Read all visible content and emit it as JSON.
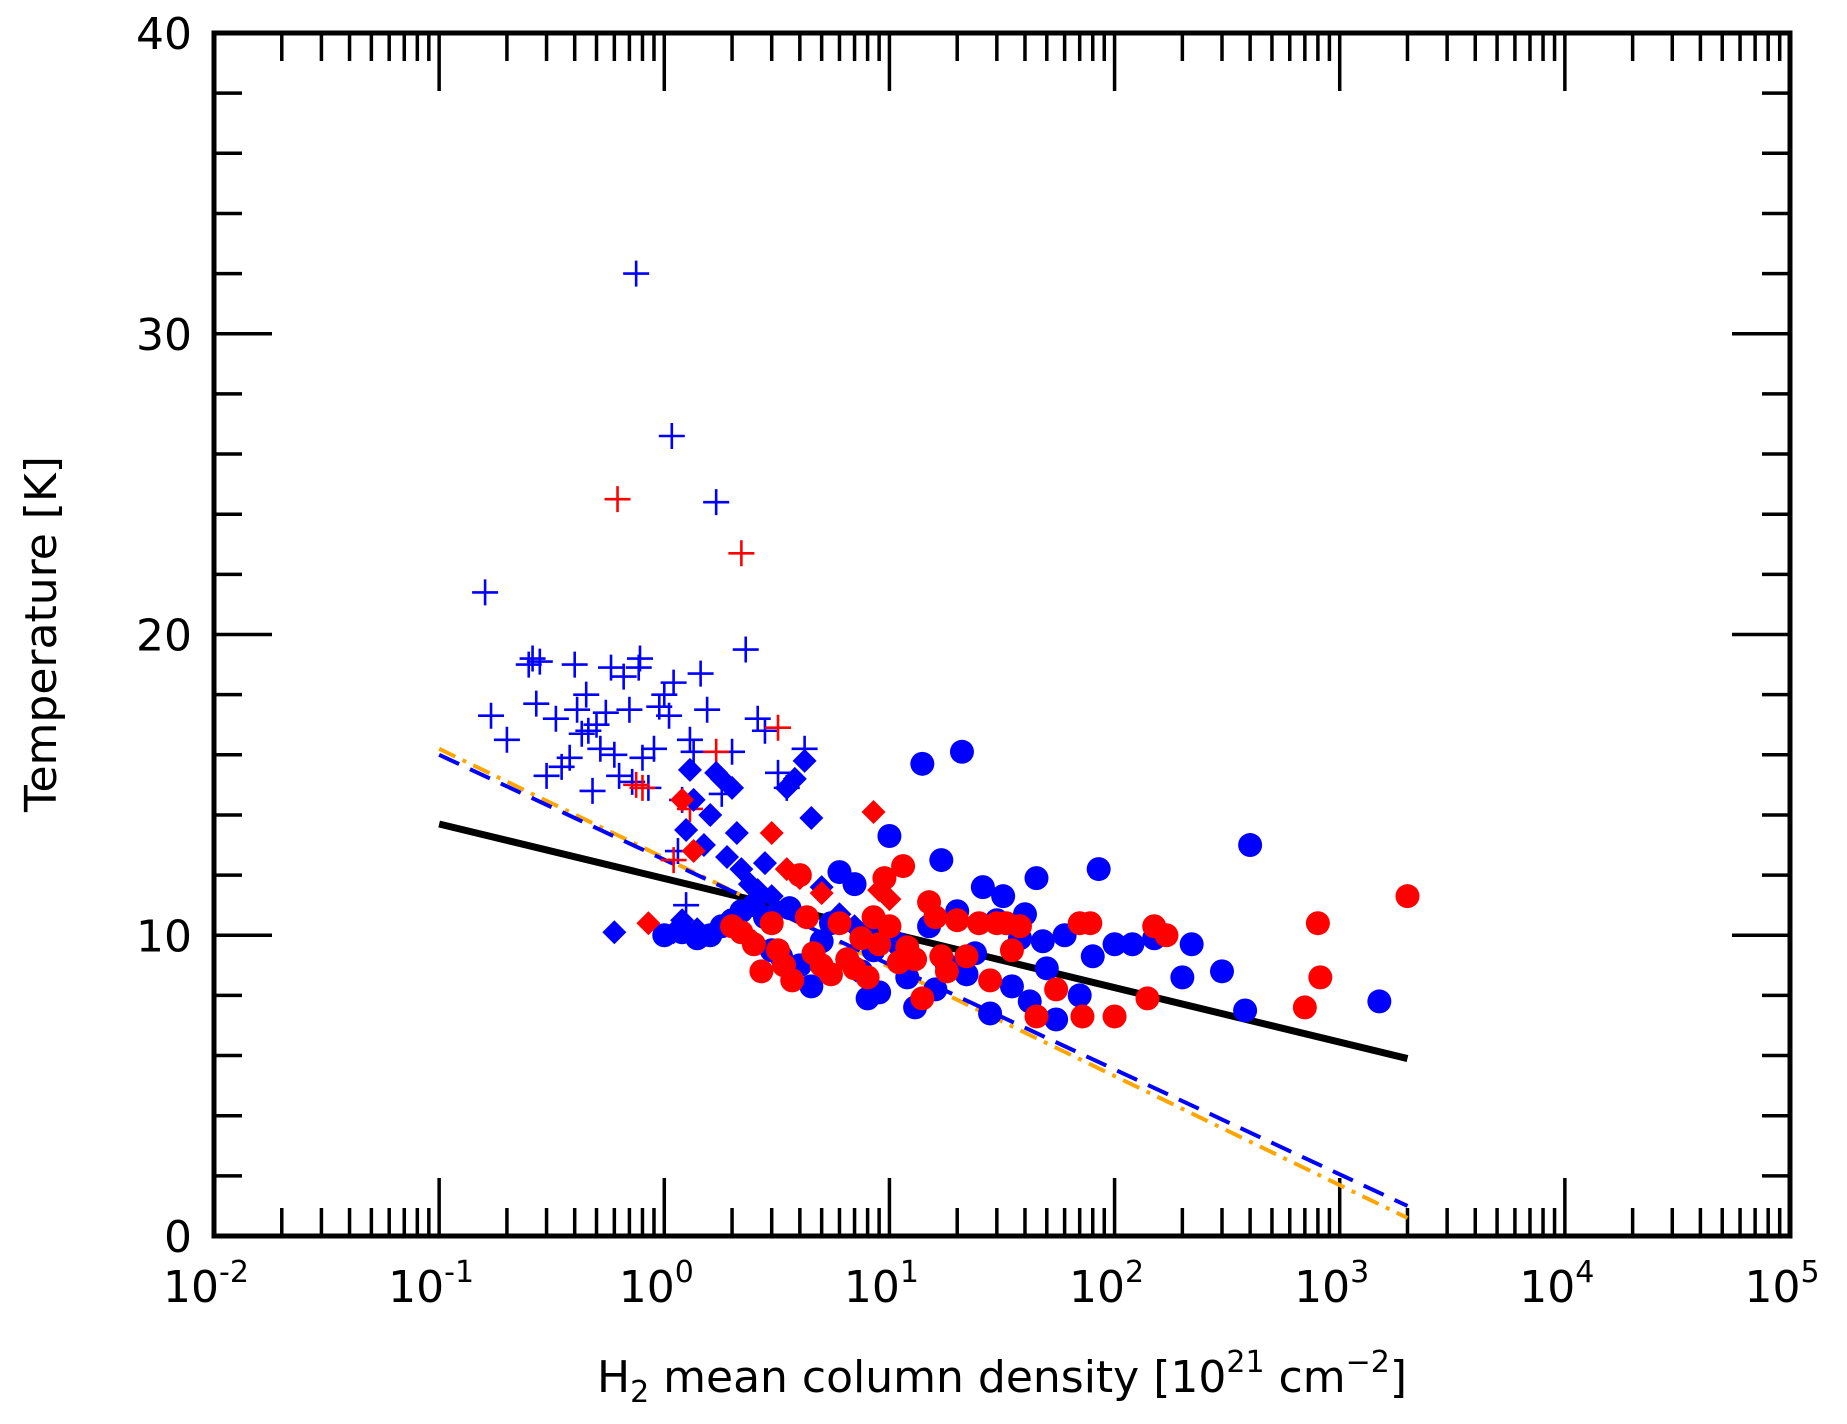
{
  "chart_data": {
    "type": "scatter",
    "title": "",
    "xlabel": {
      "base": "H",
      "sub": "2",
      "rest": " mean column density [10",
      "sup1": "21",
      "unit": " cm",
      "sup2": "−2",
      "close": "]"
    },
    "ylabel": "Temperature [K]",
    "xscale": "log",
    "xlim": [
      0.01,
      100000
    ],
    "ylim": [
      0,
      40
    ],
    "x_ticks": [
      {
        "base": "10",
        "exp": "-2"
      },
      {
        "base": "10",
        "exp": "-1"
      },
      {
        "base": "10",
        "exp": "0"
      },
      {
        "base": "10",
        "exp": "1"
      },
      {
        "base": "10",
        "exp": "2"
      },
      {
        "base": "10",
        "exp": "3"
      },
      {
        "base": "10",
        "exp": "4"
      },
      {
        "base": "10",
        "exp": "5"
      }
    ],
    "y_ticks": [
      "0",
      "10",
      "20",
      "30",
      "40"
    ],
    "lines": [
      {
        "name": "fit-black",
        "color": "#000000",
        "style": "solid",
        "x": [
          0.1,
          2000
        ],
        "y": [
          13.7,
          5.9
        ]
      },
      {
        "name": "fit-orange",
        "color": "#ffa500",
        "style": "dashdot",
        "x": [
          0.1,
          2000
        ],
        "y": [
          16.2,
          0.6
        ]
      },
      {
        "name": "fit-blue",
        "color": "#0000ff",
        "style": "dashed",
        "x": [
          0.1,
          2000
        ],
        "y": [
          16.0,
          1.0
        ]
      }
    ],
    "series": [
      {
        "name": "blue-plus",
        "marker": "plus",
        "color": "#0000ff",
        "points": [
          [
            0.16,
            21.4
          ],
          [
            0.17,
            17.3
          ],
          [
            0.2,
            16.5
          ],
          [
            0.25,
            19.0
          ],
          [
            0.26,
            19.2
          ],
          [
            0.27,
            17.7
          ],
          [
            0.28,
            19.1
          ],
          [
            0.3,
            15.3
          ],
          [
            0.33,
            17.2
          ],
          [
            0.35,
            15.6
          ],
          [
            0.38,
            15.9
          ],
          [
            0.4,
            19.0
          ],
          [
            0.41,
            17.5
          ],
          [
            0.43,
            16.7
          ],
          [
            0.45,
            18.0
          ],
          [
            0.46,
            16.8
          ],
          [
            0.48,
            14.8
          ],
          [
            0.5,
            17.0
          ],
          [
            0.52,
            16.2
          ],
          [
            0.55,
            17.4
          ],
          [
            0.58,
            18.9
          ],
          [
            0.6,
            16.0
          ],
          [
            0.63,
            15.3
          ],
          [
            0.66,
            18.6
          ],
          [
            0.7,
            17.5
          ],
          [
            0.72,
            15.1
          ],
          [
            0.75,
            32.0
          ],
          [
            0.77,
            18.9
          ],
          [
            0.78,
            19.2
          ],
          [
            0.8,
            15.9
          ],
          [
            0.85,
            14.9
          ],
          [
            0.9,
            16.2
          ],
          [
            0.95,
            17.6
          ],
          [
            1.0,
            18.0
          ],
          [
            1.05,
            17.3
          ],
          [
            1.08,
            26.6
          ],
          [
            1.1,
            18.4
          ],
          [
            1.15,
            12.8
          ],
          [
            1.2,
            14.5
          ],
          [
            1.25,
            11.0
          ],
          [
            1.3,
            16.5
          ],
          [
            1.35,
            16.1
          ],
          [
            1.45,
            18.7
          ],
          [
            1.55,
            17.5
          ],
          [
            1.7,
            24.4
          ],
          [
            1.8,
            14.7
          ],
          [
            2.0,
            16.1
          ],
          [
            2.3,
            19.5
          ],
          [
            2.6,
            17.2
          ],
          [
            2.8,
            16.8
          ],
          [
            3.2,
            15.4
          ],
          [
            3.5,
            14.9
          ],
          [
            4.2,
            16.2
          ]
        ]
      },
      {
        "name": "red-plus",
        "marker": "plus",
        "color": "#ff0000",
        "points": [
          [
            0.62,
            24.5
          ],
          [
            0.75,
            15.0
          ],
          [
            0.8,
            14.9
          ],
          [
            1.1,
            12.5
          ],
          [
            1.3,
            14.2
          ],
          [
            1.7,
            16.1
          ],
          [
            2.2,
            22.7
          ],
          [
            3.2,
            16.9
          ]
        ]
      },
      {
        "name": "blue-diamond",
        "marker": "diamond",
        "color": "#0000ff",
        "points": [
          [
            0.6,
            10.1
          ],
          [
            1.1,
            10.1
          ],
          [
            1.2,
            10.5
          ],
          [
            1.25,
            13.5
          ],
          [
            1.3,
            15.5
          ],
          [
            1.35,
            14.5
          ],
          [
            1.4,
            10.2
          ],
          [
            1.5,
            13.0
          ],
          [
            1.6,
            14.0
          ],
          [
            1.7,
            15.4
          ],
          [
            1.8,
            15.2
          ],
          [
            1.9,
            12.6
          ],
          [
            2.0,
            14.9
          ],
          [
            2.1,
            13.4
          ],
          [
            2.2,
            12.2
          ],
          [
            2.4,
            11.7
          ],
          [
            2.6,
            11.5
          ],
          [
            2.8,
            12.4
          ],
          [
            3.0,
            11.3
          ],
          [
            3.2,
            10.8
          ],
          [
            3.5,
            14.9
          ],
          [
            3.8,
            15.2
          ],
          [
            4.2,
            15.8
          ],
          [
            4.5,
            13.9
          ],
          [
            5.0,
            11.6
          ],
          [
            6.0,
            10.7
          ],
          [
            7.0,
            10.3
          ],
          [
            8.0,
            10.2
          ]
        ]
      },
      {
        "name": "red-diamond",
        "marker": "diamond",
        "color": "#ff0000",
        "points": [
          [
            0.85,
            10.4
          ],
          [
            1.2,
            14.5
          ],
          [
            1.35,
            12.8
          ],
          [
            2.0,
            10.3
          ],
          [
            2.5,
            9.8
          ],
          [
            3.0,
            13.4
          ],
          [
            3.5,
            12.2
          ],
          [
            4.0,
            11.9
          ],
          [
            5.0,
            11.4
          ],
          [
            8.5,
            14.1
          ],
          [
            9.0,
            11.5
          ],
          [
            10.0,
            11.2
          ]
        ]
      },
      {
        "name": "blue-circle",
        "marker": "circle",
        "color": "#0000ff",
        "points": [
          [
            1.0,
            10.0
          ],
          [
            1.2,
            10.1
          ],
          [
            1.4,
            9.9
          ],
          [
            1.6,
            10.0
          ],
          [
            1.8,
            10.3
          ],
          [
            2.0,
            10.5
          ],
          [
            2.2,
            10.8
          ],
          [
            2.5,
            11.0
          ],
          [
            2.8,
            10.6
          ],
          [
            3.0,
            9.5
          ],
          [
            3.3,
            9.3
          ],
          [
            3.6,
            10.9
          ],
          [
            4.0,
            9.0
          ],
          [
            4.5,
            8.3
          ],
          [
            5.0,
            9.8
          ],
          [
            5.5,
            10.4
          ],
          [
            6.0,
            12.1
          ],
          [
            6.5,
            9.2
          ],
          [
            7.0,
            11.7
          ],
          [
            7.5,
            8.8
          ],
          [
            8.0,
            7.9
          ],
          [
            8.5,
            9.5
          ],
          [
            9.0,
            8.1
          ],
          [
            10.0,
            13.3
          ],
          [
            11.0,
            9.7
          ],
          [
            12.0,
            8.6
          ],
          [
            13.0,
            7.6
          ],
          [
            14.0,
            15.7
          ],
          [
            15.0,
            10.3
          ],
          [
            16.0,
            8.2
          ],
          [
            17.0,
            12.5
          ],
          [
            18.0,
            9.0
          ],
          [
            20.0,
            10.8
          ],
          [
            21.0,
            16.1
          ],
          [
            22.0,
            8.7
          ],
          [
            24.0,
            9.4
          ],
          [
            26.0,
            11.6
          ],
          [
            28.0,
            7.4
          ],
          [
            30.0,
            10.5
          ],
          [
            32.0,
            11.3
          ],
          [
            35.0,
            8.3
          ],
          [
            38.0,
            9.9
          ],
          [
            40.0,
            10.7
          ],
          [
            42.0,
            7.8
          ],
          [
            45.0,
            11.9
          ],
          [
            48.0,
            9.8
          ],
          [
            50.0,
            8.9
          ],
          [
            55.0,
            7.2
          ],
          [
            60.0,
            10.0
          ],
          [
            70.0,
            8.0
          ],
          [
            80.0,
            9.3
          ],
          [
            85.0,
            12.2
          ],
          [
            100.0,
            9.7
          ],
          [
            120.0,
            9.7
          ],
          [
            150.0,
            9.9
          ],
          [
            200.0,
            8.6
          ],
          [
            220.0,
            9.7
          ],
          [
            300.0,
            8.8
          ],
          [
            380.0,
            7.5
          ],
          [
            400.0,
            13.0
          ],
          [
            1500.0,
            7.8
          ]
        ]
      },
      {
        "name": "red-circle",
        "marker": "circle",
        "color": "#ff0000",
        "points": [
          [
            2.0,
            10.3
          ],
          [
            2.2,
            10.1
          ],
          [
            2.5,
            9.7
          ],
          [
            2.7,
            8.8
          ],
          [
            3.0,
            10.4
          ],
          [
            3.2,
            9.5
          ],
          [
            3.4,
            9.0
          ],
          [
            3.7,
            8.5
          ],
          [
            4.0,
            12.0
          ],
          [
            4.3,
            10.6
          ],
          [
            4.6,
            9.4
          ],
          [
            5.0,
            9.0
          ],
          [
            5.5,
            8.7
          ],
          [
            6.0,
            10.4
          ],
          [
            6.5,
            9.2
          ],
          [
            7.0,
            8.9
          ],
          [
            7.5,
            9.9
          ],
          [
            8.0,
            8.6
          ],
          [
            8.5,
            10.6
          ],
          [
            9.0,
            9.7
          ],
          [
            9.5,
            11.9
          ],
          [
            10.0,
            10.3
          ],
          [
            11.0,
            9.1
          ],
          [
            11.5,
            12.3
          ],
          [
            12.0,
            9.6
          ],
          [
            13.0,
            9.2
          ],
          [
            14.0,
            7.9
          ],
          [
            15.0,
            11.1
          ],
          [
            16.0,
            10.6
          ],
          [
            17.0,
            9.3
          ],
          [
            18.0,
            8.8
          ],
          [
            20.0,
            10.5
          ],
          [
            22.0,
            9.3
          ],
          [
            25.0,
            10.4
          ],
          [
            28.0,
            8.5
          ],
          [
            30.0,
            10.4
          ],
          [
            33.0,
            10.4
          ],
          [
            35.0,
            9.5
          ],
          [
            38.0,
            10.3
          ],
          [
            45.0,
            7.3
          ],
          [
            55.0,
            8.2
          ],
          [
            70.0,
            10.4
          ],
          [
            72.0,
            7.3
          ],
          [
            78.0,
            10.4
          ],
          [
            100.0,
            7.3
          ],
          [
            140.0,
            7.9
          ],
          [
            150.0,
            10.3
          ],
          [
            170.0,
            10.0
          ],
          [
            700.0,
            7.6
          ],
          [
            800.0,
            10.4
          ],
          [
            820.0,
            8.6
          ],
          [
            2000.0,
            11.3
          ]
        ]
      }
    ]
  }
}
